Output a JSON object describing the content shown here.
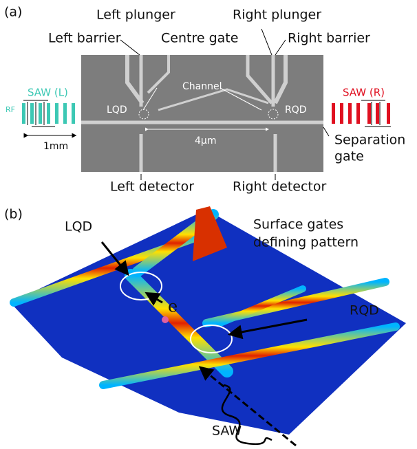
{
  "panel_a": {
    "label": "(a)",
    "left_plunger": "Left plunger",
    "right_plunger": "Right plunger",
    "left_barrier": "Left barrier",
    "centre_gate": "Centre gate",
    "right_barrier": "Right barrier",
    "saw_left": "SAW (L)",
    "saw_right": "SAW (R)",
    "rf": "RF",
    "channel": "Channel",
    "lqd": "LQD",
    "rqd": "RQD",
    "scale_1mm": "1mm",
    "scale_4um": "4μm",
    "separation_gate": [
      "Separation",
      "gate"
    ],
    "left_detector": "Left detector",
    "right_detector": "Right detector"
  },
  "panel_b": {
    "label": "(b)",
    "lqd": "LQD",
    "surface_gates": [
      "Surface gates",
      "defining pattern"
    ],
    "electron": "e",
    "rqd": "RQD",
    "saw": "SAW"
  }
}
